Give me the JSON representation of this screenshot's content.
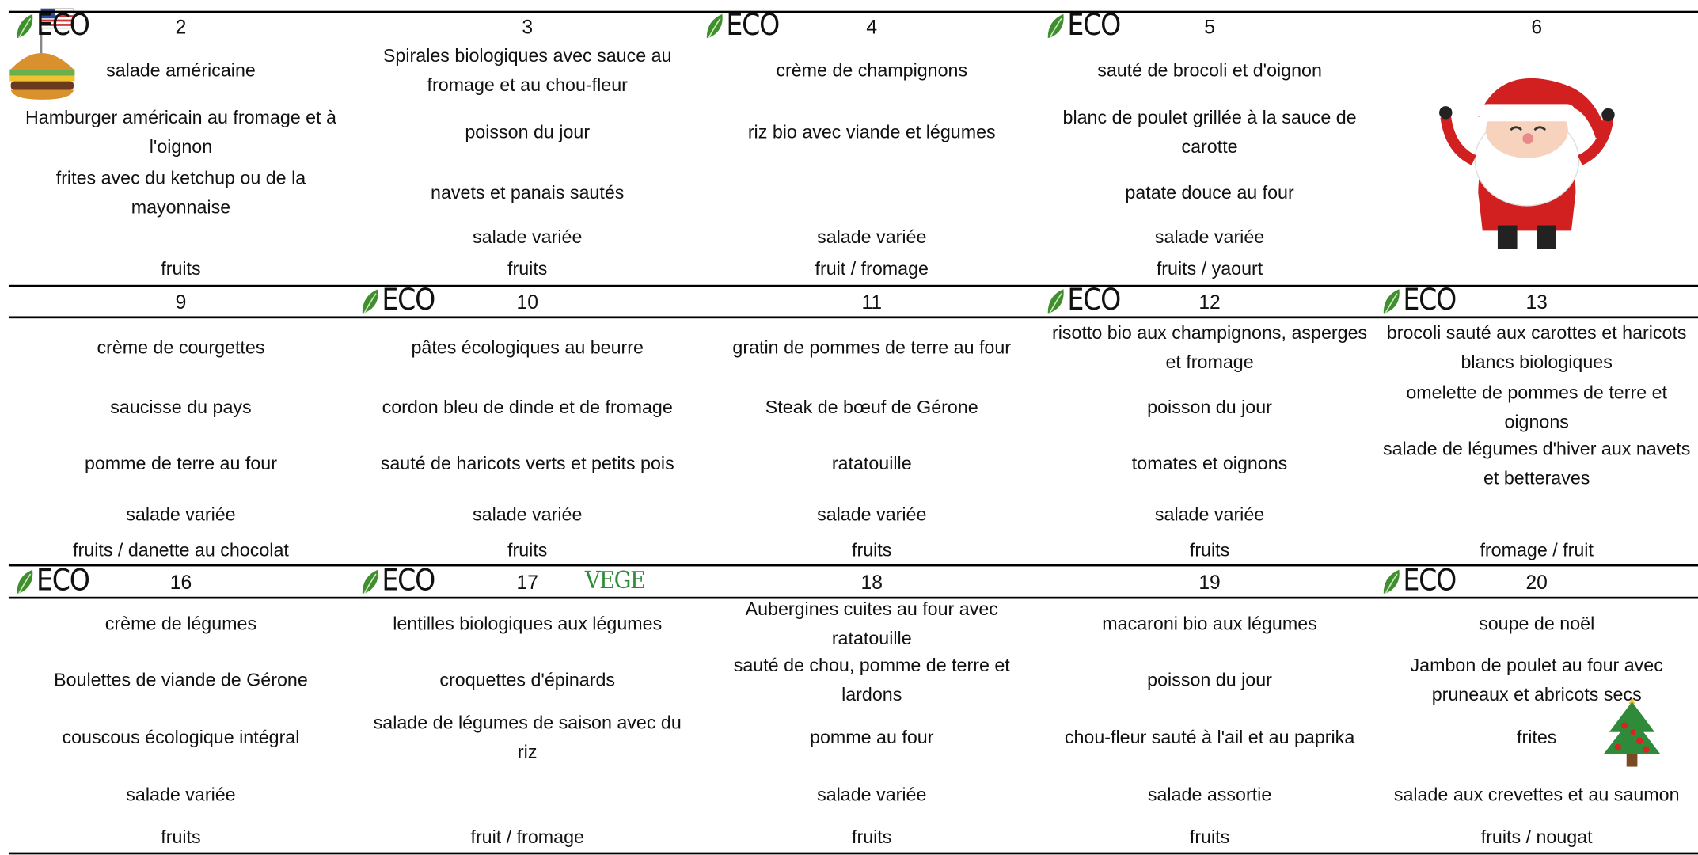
{
  "weeks": [
    {
      "days": [
        {
          "day": "2",
          "badges": [
            "ECO"
          ],
          "items": [
            "salade américaine",
            "Hamburger américain au fromage et à l'oignon",
            "frites avec du ketchup ou de la mayonnaise",
            null,
            "fruits"
          ]
        },
        {
          "day": "3",
          "items": [
            "Spirales biologiques avec sauce au fromage et au chou-fleur",
            "poisson du jour",
            "navets et panais sautés",
            "salade variée",
            "fruits"
          ]
        },
        {
          "day": "4",
          "badges": [
            "ECO"
          ],
          "items": [
            "crème de champignons",
            "riz bio avec viande et légumes",
            null,
            "salade variée",
            "fruit / fromage"
          ]
        },
        {
          "day": "5",
          "badges": [
            "ECO"
          ],
          "items": [
            "sauté de brocoli et d'oignon",
            "blanc de poulet grillée à la sauce de carotte",
            "patate douce au four",
            "salade variée",
            "fruits / yaourt"
          ]
        },
        {
          "day": "6",
          "items": []
        }
      ]
    },
    {
      "days": [
        {
          "day": "9",
          "items": [
            "crème de courgettes",
            "saucisse du pays",
            "pomme de terre au four",
            "salade variée",
            "fruits / danette au chocolat"
          ]
        },
        {
          "day": "10",
          "badges": [
            "ECO"
          ],
          "items": [
            "pâtes écologiques au beurre",
            "cordon bleu de dinde et de fromage",
            "sauté de haricots verts et petits pois",
            "salade variée",
            "fruits"
          ]
        },
        {
          "day": "11",
          "items": [
            "gratin de pommes de terre au four",
            "Steak de bœuf de Gérone",
            "ratatouille",
            "salade variée",
            "fruits"
          ]
        },
        {
          "day": "12",
          "badges": [
            "ECO"
          ],
          "items": [
            "risotto bio aux champignons, asperges et fromage",
            "poisson du jour",
            "tomates et oignons",
            "salade variée",
            "fruits"
          ]
        },
        {
          "day": "13",
          "badges": [
            "ECO"
          ],
          "items": [
            "brocoli sauté aux carottes et haricots blancs biologiques",
            "omelette de pommes de terre et oignons",
            "salade de légumes d'hiver aux navets et betteraves",
            null,
            "fromage / fruit"
          ]
        }
      ]
    },
    {
      "days": [
        {
          "day": "16",
          "badges": [
            "ECO"
          ],
          "items": [
            "crème de légumes",
            "Boulettes de viande de Gérone",
            "couscous écologique intégral",
            "salade variée",
            "fruits"
          ]
        },
        {
          "day": "17",
          "badges": [
            "ECO",
            "VEGE"
          ],
          "items": [
            "lentilles biologiques aux légumes",
            "croquettes d'épinards",
            "salade de légumes de saison avec du riz",
            null,
            "fruit / fromage"
          ]
        },
        {
          "day": "18",
          "items": [
            "Aubergines cuites au four avec ratatouille",
            "sauté de chou, pomme de terre et lardons",
            "pomme au four",
            "salade variée",
            "fruits"
          ]
        },
        {
          "day": "19",
          "items": [
            "macaroni bio aux légumes",
            "poisson du jour",
            "chou-fleur sauté à l'ail et au paprika",
            "salade assortie",
            "fruits"
          ]
        },
        {
          "day": "20",
          "badges": [
            "ECO"
          ],
          "items": [
            "soupe de noël",
            "Jambon de poulet au four avec pruneaux et abricots secs",
            "frites",
            "salade aux crevettes et au saumon",
            "fruits / nougat"
          ]
        }
      ]
    }
  ]
}
